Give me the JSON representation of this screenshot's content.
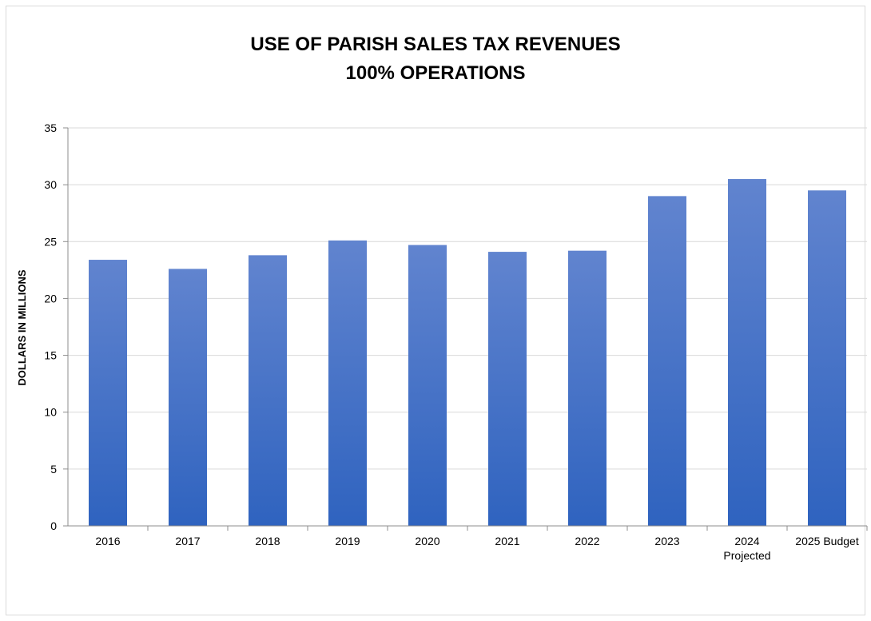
{
  "chart_data": {
    "type": "bar",
    "title": "USE OF PARISH SALES TAX REVENUES",
    "subtitle": "100% OPERATIONS",
    "ylabel": "DOLLARS IN MILLIONS",
    "xlabel": "",
    "ylim": [
      0,
      35
    ],
    "yticks": [
      0,
      5,
      10,
      15,
      20,
      25,
      30,
      35
    ],
    "grid": true,
    "legend": "none",
    "categories": [
      "2016",
      "2017",
      "2018",
      "2019",
      "2020",
      "2021",
      "2022",
      "2023",
      "2024 Projected",
      "2025 Budget"
    ],
    "category_lines": [
      [
        "2016"
      ],
      [
        "2017"
      ],
      [
        "2018"
      ],
      [
        "2019"
      ],
      [
        "2020"
      ],
      [
        "2021"
      ],
      [
        "2022"
      ],
      [
        "2023"
      ],
      [
        "2024",
        "Projected"
      ],
      [
        "2025 Budget"
      ]
    ],
    "values": [
      23.4,
      22.6,
      23.8,
      25.1,
      24.7,
      24.1,
      24.2,
      29.0,
      30.5,
      29.5
    ],
    "colors": {
      "bar_top": "#6184cf",
      "bar_bottom": "#2f63bf",
      "grid": "#d9d9d9",
      "axis": "#8c8c8c"
    }
  }
}
